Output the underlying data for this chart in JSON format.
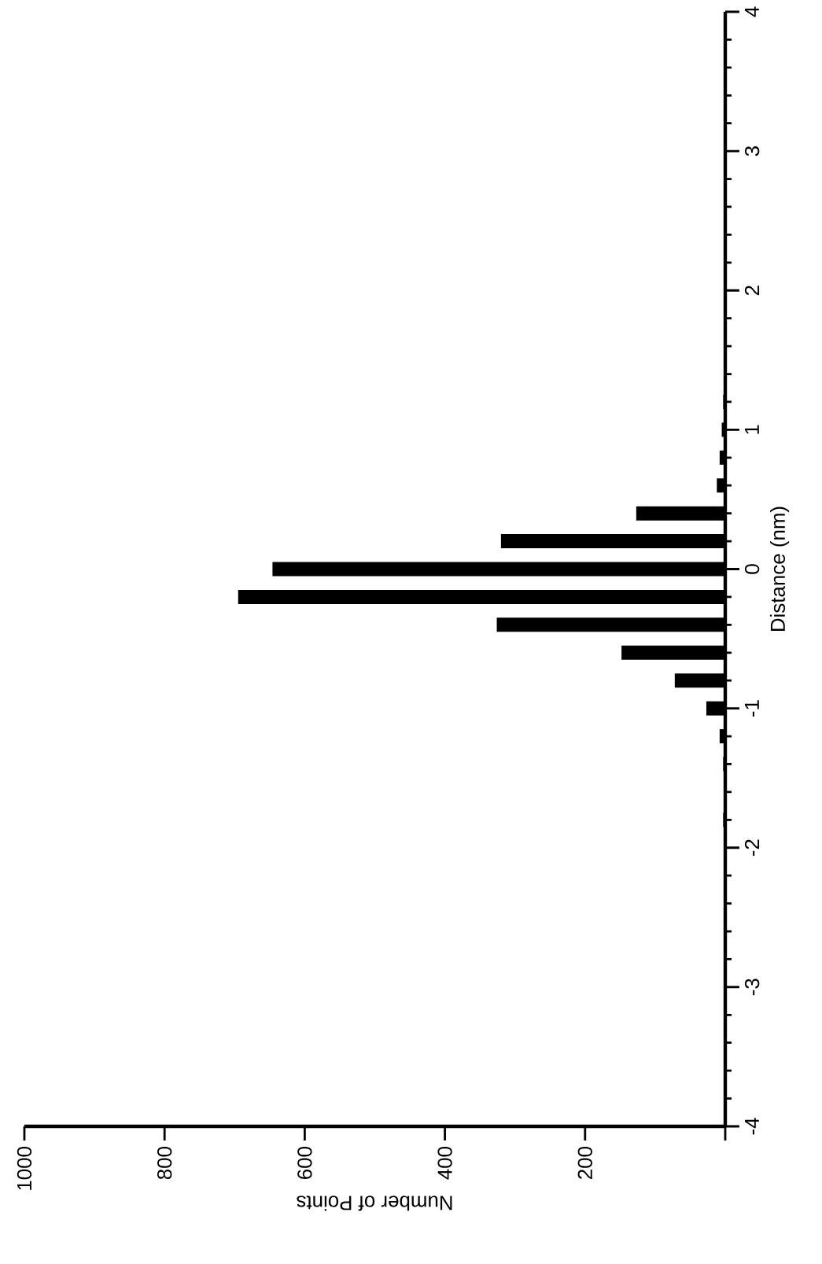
{
  "chart_data": {
    "type": "bar",
    "orientation": "horizontal",
    "xlabel": "Number of Points",
    "ylabel": "Distance (nm)",
    "x": [
      -1.8,
      -1.4,
      -1.2,
      -1.0,
      -0.8,
      -0.6,
      -0.4,
      -0.2,
      0,
      0.2,
      0.4,
      0.6,
      0.8,
      1.0,
      1.2
    ],
    "values": [
      3,
      3,
      8,
      27,
      72,
      148,
      326,
      695,
      646,
      320,
      127,
      12,
      8,
      5,
      3
    ],
    "color": "#000000",
    "xlim": [
      1000,
      0
    ],
    "xticks": [
      {
        "value": 0,
        "label": null
      },
      200,
      400,
      600,
      800,
      1000
    ],
    "ylim": [
      -4,
      4
    ],
    "yticks": [
      -4,
      -3,
      -2,
      -1,
      0,
      1,
      2,
      3,
      4
    ]
  }
}
